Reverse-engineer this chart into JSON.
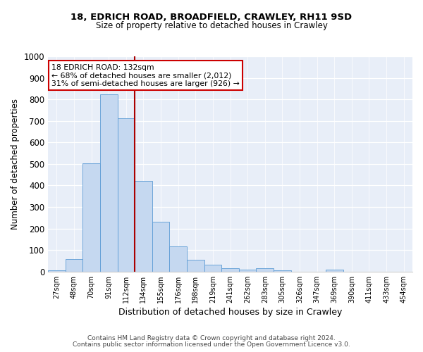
{
  "title_line1": "18, EDRICH ROAD, BROADFIELD, CRAWLEY, RH11 9SD",
  "title_line2": "Size of property relative to detached houses in Crawley",
  "xlabel": "Distribution of detached houses by size in Crawley",
  "ylabel": "Number of detached properties",
  "bin_labels": [
    "27sqm",
    "48sqm",
    "70sqm",
    "91sqm",
    "112sqm",
    "134sqm",
    "155sqm",
    "176sqm",
    "198sqm",
    "219sqm",
    "241sqm",
    "262sqm",
    "283sqm",
    "305sqm",
    "326sqm",
    "347sqm",
    "369sqm",
    "390sqm",
    "411sqm",
    "433sqm",
    "454sqm"
  ],
  "bar_values": [
    7,
    57,
    503,
    822,
    712,
    420,
    230,
    116,
    55,
    32,
    15,
    10,
    15,
    7,
    0,
    0,
    9,
    0,
    0,
    0,
    0
  ],
  "bar_color": "#c5d8f0",
  "bar_edge_color": "#5b9bd5",
  "vline_x": 4.5,
  "vline_color": "#aa0000",
  "annotation_line1": "18 EDRICH ROAD: 132sqm",
  "annotation_line2": "← 68% of detached houses are smaller (2,012)",
  "annotation_line3": "31% of semi-detached houses are larger (926) →",
  "annotation_box_color": "#ffffff",
  "annotation_box_edge": "#cc0000",
  "ylim": [
    0,
    1000
  ],
  "yticks": [
    0,
    100,
    200,
    300,
    400,
    500,
    600,
    700,
    800,
    900,
    1000
  ],
  "footnote1": "Contains HM Land Registry data © Crown copyright and database right 2024.",
  "footnote2": "Contains public sector information licensed under the Open Government Licence v3.0.",
  "background_color": "#e8eef8",
  "fig_width": 6.0,
  "fig_height": 5.0,
  "fig_dpi": 100
}
